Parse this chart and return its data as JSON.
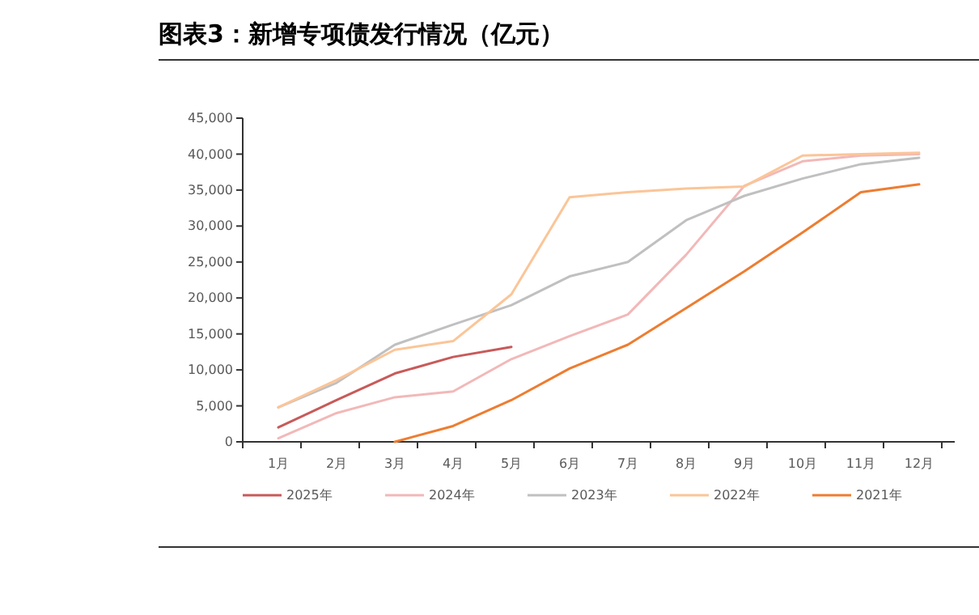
{
  "chart_data": {
    "type": "line",
    "title": "图表3：新增专项债发行情况（亿元）",
    "categories": [
      "1月",
      "2月",
      "3月",
      "4月",
      "5月",
      "6月",
      "7月",
      "8月",
      "9月",
      "10月",
      "11月",
      "12月"
    ],
    "ylim": [
      0,
      45000
    ],
    "yticks": [
      0,
      {
        "value": 5000,
        "label": "5,000"
      },
      {
        "value": 10000,
        "label": "10,000"
      },
      {
        "value": 15000,
        "label": "15,000"
      },
      {
        "value": 20000,
        "label": "20,000"
      },
      {
        "value": 25000,
        "label": "25,000"
      },
      {
        "value": 30000,
        "label": "30,000"
      },
      {
        "value": 35000,
        "label": "35,000"
      },
      {
        "value": 40000,
        "label": "40,000"
      },
      {
        "value": 45000,
        "label": "45,000"
      }
    ],
    "grid": false,
    "legend": "bottom",
    "marker": "none",
    "line_style": "solid",
    "series": [
      {
        "name": "2025年",
        "color": "#c85a5a",
        "values": [
          2000,
          5800,
          9500,
          11800,
          13200,
          null,
          null,
          null,
          null,
          null,
          null,
          null
        ]
      },
      {
        "name": "2024年",
        "color": "#f2b8b8",
        "values": [
          500,
          4000,
          6200,
          7000,
          11500,
          14700,
          17700,
          26000,
          35600,
          39000,
          39800,
          40000
        ]
      },
      {
        "name": "2023年",
        "color": "#c0c0c0",
        "values": [
          4800,
          8200,
          13500,
          16300,
          19000,
          23000,
          25000,
          30800,
          34200,
          36600,
          38600,
          39500
        ]
      },
      {
        "name": "2022年",
        "color": "#fbc598",
        "values": [
          4800,
          8600,
          12800,
          14000,
          20500,
          34000,
          34700,
          35200,
          35500,
          39800,
          40000,
          40200
        ]
      },
      {
        "name": "2021年",
        "color": "#ed7d31",
        "values": [
          null,
          null,
          0,
          2200,
          5800,
          10200,
          13500,
          18600,
          23700,
          29100,
          34700,
          35800
        ]
      }
    ]
  }
}
